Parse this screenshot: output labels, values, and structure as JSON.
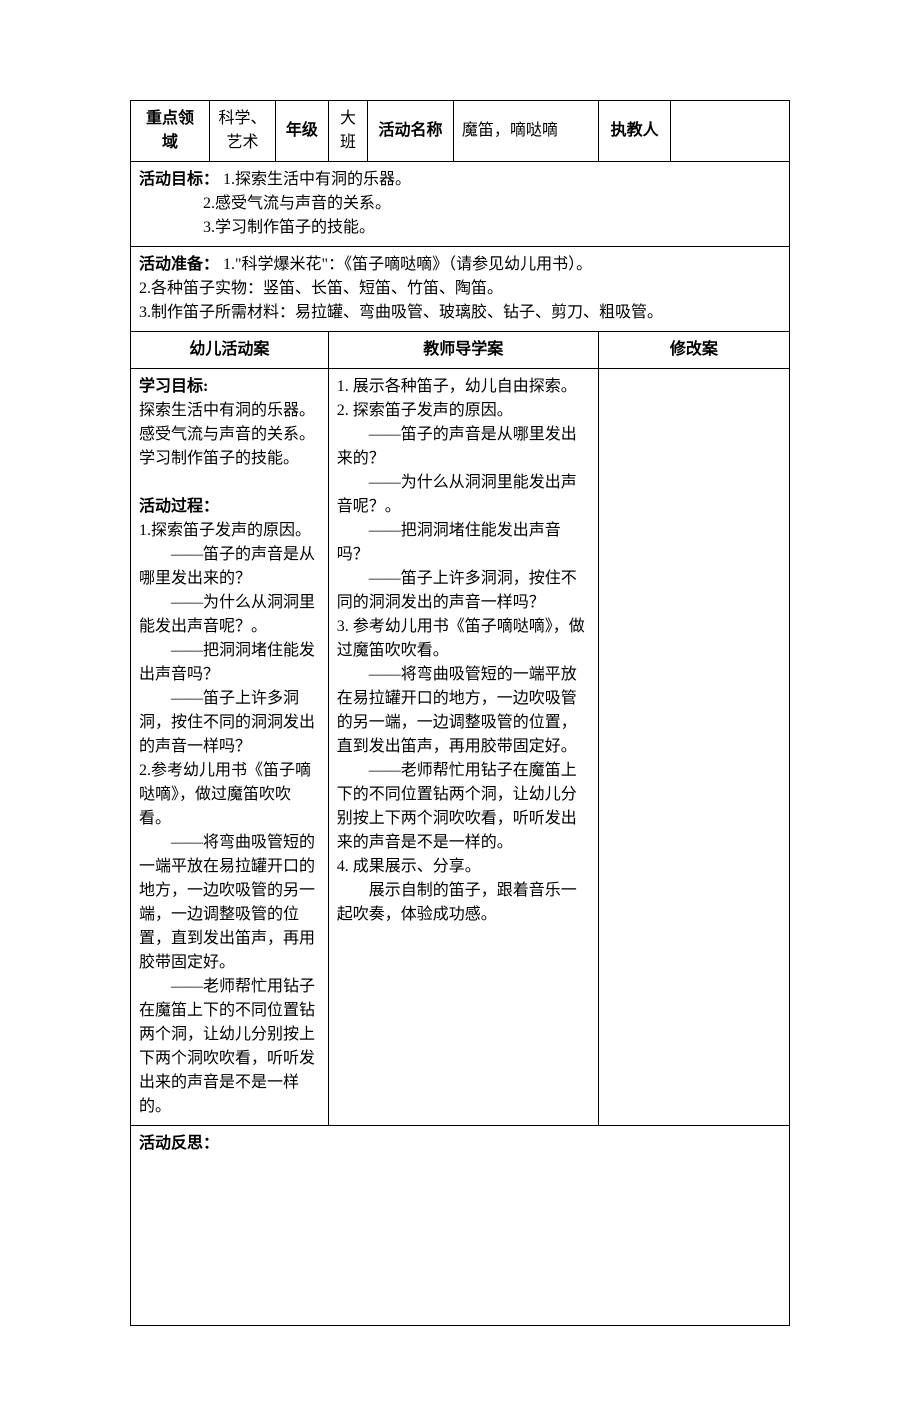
{
  "header": {
    "field_label": "重点领域",
    "field_value": "科学、艺术",
    "grade_label": "年级",
    "grade_value": "大班",
    "activity_label": "活动名称",
    "activity_value": "魔笛，嘀哒嘀",
    "teacher_label": "执教人",
    "teacher_value": ""
  },
  "goals": {
    "label": "活动目标：",
    "item1": "1.探索生活中有洞的乐器。",
    "item2": "2.感受气流与声音的关系。",
    "item3": "3.学习制作笛子的技能。"
  },
  "prep": {
    "label": "活动准备：",
    "line1": "1.\"科学爆米花\"：《笛子嘀哒嘀》（请参见幼儿用书）。",
    "line2": "2.各种笛子实物：竖笛、长笛、短笛、竹笛、陶笛。",
    "line3": "3.制作笛子所需材料：易拉罐、弯曲吸管、玻璃胶、钻子、剪刀、粗吸管。"
  },
  "columns": {
    "child_plan": "幼儿活动案",
    "teacher_plan": "教师导学案",
    "revise_plan": "修改案"
  },
  "child_plan": {
    "learn_label": "学习目标:",
    "learn1": "探索生活中有洞的乐器。",
    "learn2": "感受气流与声音的关系。",
    "learn3": "学习制作笛子的技能。",
    "process_label": "活动过程：",
    "p1": "1.探索笛子发声的原因。",
    "p2": "——笛子的声音是从哪里发出来的？",
    "p3": "——为什么从洞洞里能发出声音呢？。",
    "p4": "——把洞洞堵住能发出声音吗？",
    "p5": "——笛子上许多洞洞，按住不同的洞洞发出的声音一样吗？",
    "p6": "2.参考幼儿用书《笛子嘀哒嘀》，做过魔笛吹吹看。",
    "p7": "——将弯曲吸管短的一端平放在易拉罐开口的地方，一边吹吸管的另一端，一边调整吸管的位置，直到发出笛声，再用胶带固定好。",
    "p8": "——老师帮忙用钻子在魔笛上下的不同位置钻两个洞，让幼儿分别按上下两个洞吹吹看，听听发出来的声音是不是一样的。"
  },
  "teacher_plan": {
    "t1": "1.  展示各种笛子，幼儿自由探索。",
    "t2": "2.  探索笛子发声的原因。",
    "t3": "——笛子的声音是从哪里发出来的？",
    "t4": "——为什么从洞洞里能发出声音呢？。",
    "t5": "——把洞洞堵住能发出声音吗？",
    "t6": "——笛子上许多洞洞，按住不同的洞洞发出的声音一样吗？",
    "t7": "3. 参考幼儿用书《笛子嘀哒嘀》，做过魔笛吹吹看。",
    "t8": "——将弯曲吸管短的一端平放在易拉罐开口的地方，一边吹吸管的另一端，一边调整吸管的位置，直到发出笛声，再用胶带固定好。",
    "t9": "——老师帮忙用钻子在魔笛上下的不同位置钻两个洞，让幼儿分别按上下两个洞吹吹看，听听发出来的声音是不是一样的。",
    "t10": "4. 成果展示、分享。",
    "t11": "展示自制的笛子，跟着音乐一起吹奏，体验成功感。"
  },
  "reflection": {
    "label": "活动反思："
  },
  "styles": {
    "background_color": "#ffffff",
    "border_color": "#000000",
    "text_color": "#000000",
    "font_family": "SimSun",
    "base_font_size": 16
  }
}
